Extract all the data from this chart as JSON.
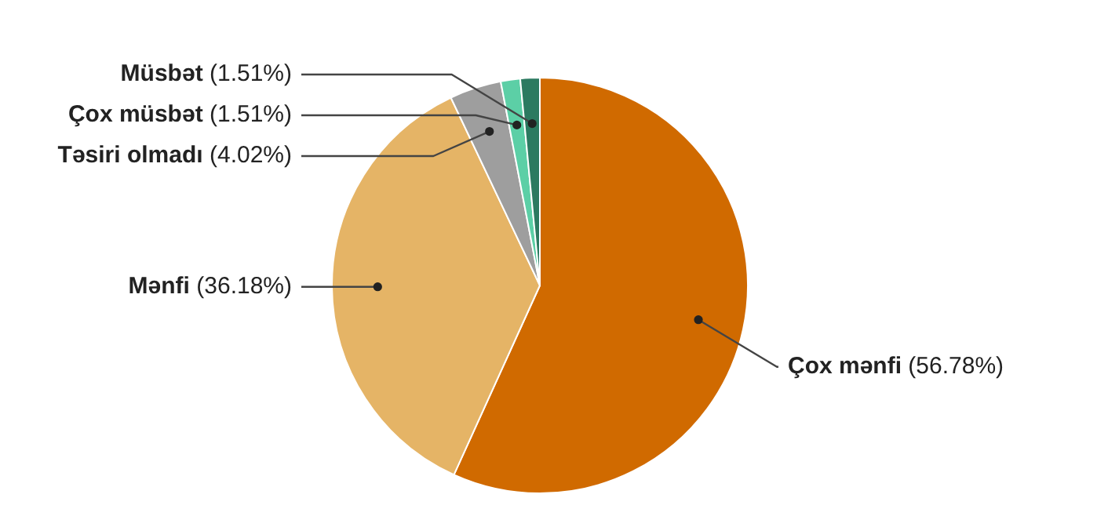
{
  "chart_data": {
    "type": "pie",
    "categories": [
      "Çox mənfi",
      "Mənfi",
      "Təsiri olmadı",
      "Çox müsbət",
      "Müsbət"
    ],
    "values": [
      56.78,
      36.18,
      4.02,
      1.51,
      1.51
    ],
    "value_labels": [
      "(56.78%)",
      "(36.18%)",
      "(4.02%)",
      "(1.51%)",
      "(1.51%)"
    ],
    "colors": [
      "#d06a00",
      "#e5b466",
      "#9e9e9e",
      "#5ccfa6",
      "#2b7a60"
    ],
    "legend": false
  }
}
